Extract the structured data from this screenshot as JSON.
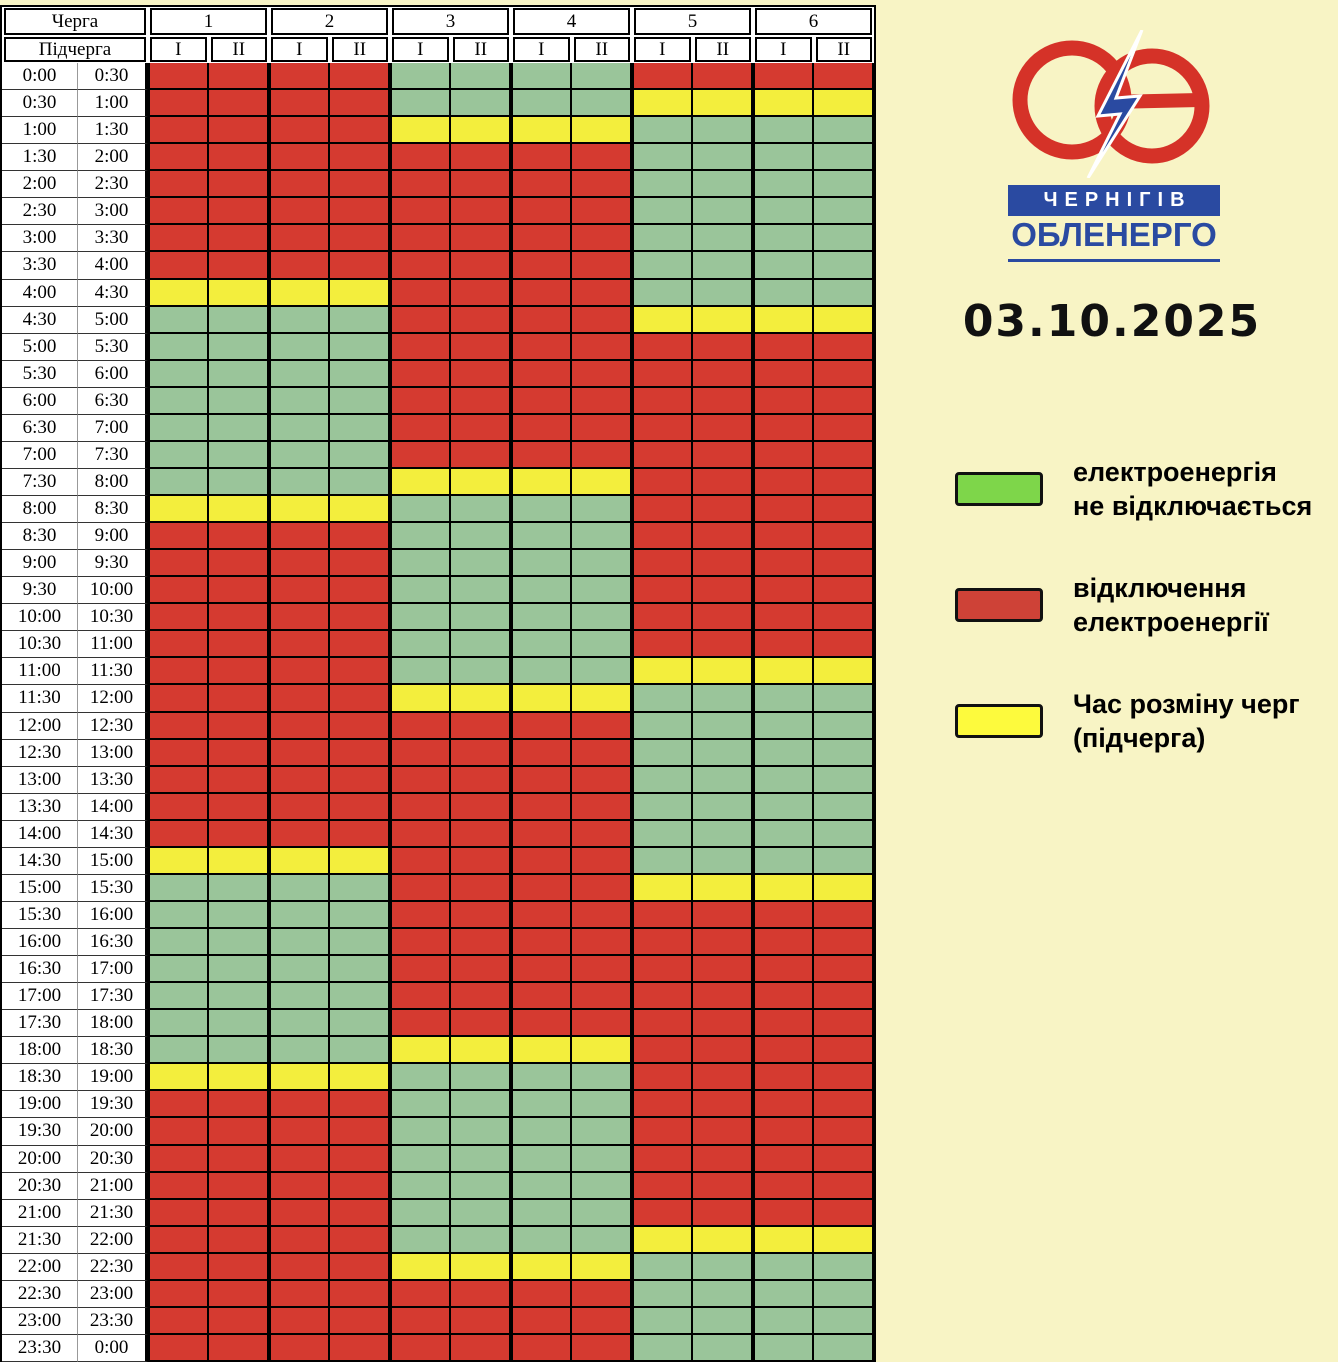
{
  "date": "03.10.2025",
  "colors": {
    "background": "#f8f4c5",
    "cell_red": "#d53a30",
    "cell_green": "#9ac59a",
    "cell_yellow": "#f3ee3d",
    "legend_green": "#7ed64a",
    "legend_red": "#ce4237",
    "legend_yellow": "#fdfa3d",
    "logo_red": "#d53228",
    "logo_blue": "#2a4aa1"
  },
  "logo": {
    "banner": "ЧЕРНІГІВ",
    "name": "ОБЛЕНЕРГО"
  },
  "table": {
    "cherga_label": "Черга",
    "pidcherga_label": "Підчерга",
    "queues": [
      "1",
      "2",
      "3",
      "4",
      "5",
      "6"
    ],
    "subqueues": [
      "I",
      "II"
    ]
  },
  "legend": {
    "items": [
      {
        "swatch": "green",
        "line1": "електроенергія",
        "line2": "не відключається"
      },
      {
        "swatch": "red",
        "line1": "відключення",
        "line2": "електроенергії"
      },
      {
        "swatch": "yellow",
        "line1": "Час розміну черг",
        "line2": "(підчерга)"
      }
    ]
  },
  "chart_data": {
    "type": "heatmap",
    "title": "03.10.2025",
    "columns": [
      "1-I",
      "1-II",
      "2-I",
      "2-II",
      "3-I",
      "3-II",
      "4-I",
      "4-II",
      "5-I",
      "5-II",
      "6-I",
      "6-II"
    ],
    "cell_legend": {
      "R": "відключення електроенергії",
      "G": "електроенергія не відключається",
      "Y": "Час розміну черг (підчерга)"
    },
    "rows": [
      {
        "start": "0:00",
        "end": "0:30",
        "cells": "RRRRGGGGRRRR"
      },
      {
        "start": "0:30",
        "end": "1:00",
        "cells": "RRRRGGGGYYYY"
      },
      {
        "start": "1:00",
        "end": "1:30",
        "cells": "RRRRYYYYGGGG"
      },
      {
        "start": "1:30",
        "end": "2:00",
        "cells": "RRRRRRRRGGGG"
      },
      {
        "start": "2:00",
        "end": "2:30",
        "cells": "RRRRRRRRGGGG"
      },
      {
        "start": "2:30",
        "end": "3:00",
        "cells": "RRRRRRRRGGGG"
      },
      {
        "start": "3:00",
        "end": "3:30",
        "cells": "RRRRRRRRGGGG"
      },
      {
        "start": "3:30",
        "end": "4:00",
        "cells": "RRRRRRRRGGGG"
      },
      {
        "start": "4:00",
        "end": "4:30",
        "cells": "YYYYRRRRGGGG"
      },
      {
        "start": "4:30",
        "end": "5:00",
        "cells": "GGGGRRRRYYYY"
      },
      {
        "start": "5:00",
        "end": "5:30",
        "cells": "GGGGRRRRRRRR"
      },
      {
        "start": "5:30",
        "end": "6:00",
        "cells": "GGGGRRRRRRRR"
      },
      {
        "start": "6:00",
        "end": "6:30",
        "cells": "GGGGRRRRRRRR"
      },
      {
        "start": "6:30",
        "end": "7:00",
        "cells": "GGGGRRRRRRRR"
      },
      {
        "start": "7:00",
        "end": "7:30",
        "cells": "GGGGRRRRRRRR"
      },
      {
        "start": "7:30",
        "end": "8:00",
        "cells": "GGGGYYYYRRRR"
      },
      {
        "start": "8:00",
        "end": "8:30",
        "cells": "YYYYGGGGRRRR"
      },
      {
        "start": "8:30",
        "end": "9:00",
        "cells": "RRRRGGGGRRRR"
      },
      {
        "start": "9:00",
        "end": "9:30",
        "cells": "RRRRGGGGRRRR"
      },
      {
        "start": "9:30",
        "end": "10:00",
        "cells": "RRRRGGGGRRRR"
      },
      {
        "start": "10:00",
        "end": "10:30",
        "cells": "RRRRGGGGRRRR"
      },
      {
        "start": "10:30",
        "end": "11:00",
        "cells": "RRRRGGGGRRRR"
      },
      {
        "start": "11:00",
        "end": "11:30",
        "cells": "RRRRGGGGYYYY"
      },
      {
        "start": "11:30",
        "end": "12:00",
        "cells": "RRRRYYYYGGGG"
      },
      {
        "start": "12:00",
        "end": "12:30",
        "cells": "RRRRRRRRGGGG"
      },
      {
        "start": "12:30",
        "end": "13:00",
        "cells": "RRRRRRRRGGGG"
      },
      {
        "start": "13:00",
        "end": "13:30",
        "cells": "RRRRRRRRGGGG"
      },
      {
        "start": "13:30",
        "end": "14:00",
        "cells": "RRRRRRRRGGGG"
      },
      {
        "start": "14:00",
        "end": "14:30",
        "cells": "RRRRRRRRGGGG"
      },
      {
        "start": "14:30",
        "end": "15:00",
        "cells": "YYYYRRRRGGGG"
      },
      {
        "start": "15:00",
        "end": "15:30",
        "cells": "GGGGRRRRYYYY"
      },
      {
        "start": "15:30",
        "end": "16:00",
        "cells": "GGGGRRRRRRRR"
      },
      {
        "start": "16:00",
        "end": "16:30",
        "cells": "GGGGRRRRRRRR"
      },
      {
        "start": "16:30",
        "end": "17:00",
        "cells": "GGGGRRRRRRRR"
      },
      {
        "start": "17:00",
        "end": "17:30",
        "cells": "GGGGRRRRRRRR"
      },
      {
        "start": "17:30",
        "end": "18:00",
        "cells": "GGGGRRRRRRRR"
      },
      {
        "start": "18:00",
        "end": "18:30",
        "cells": "GGGGYYYYRRRR"
      },
      {
        "start": "18:30",
        "end": "19:00",
        "cells": "YYYYGGGGRRRR"
      },
      {
        "start": "19:00",
        "end": "19:30",
        "cells": "RRRRGGGGRRRR"
      },
      {
        "start": "19:30",
        "end": "20:00",
        "cells": "RRRRGGGGRRRR"
      },
      {
        "start": "20:00",
        "end": "20:30",
        "cells": "RRRRGGGGRRRR"
      },
      {
        "start": "20:30",
        "end": "21:00",
        "cells": "RRRRGGGGRRRR"
      },
      {
        "start": "21:00",
        "end": "21:30",
        "cells": "RRRRGGGGRRRR"
      },
      {
        "start": "21:30",
        "end": "22:00",
        "cells": "RRRRGGGGYYYY"
      },
      {
        "start": "22:00",
        "end": "22:30",
        "cells": "RRRRYYYYGGGG"
      },
      {
        "start": "22:30",
        "end": "23:00",
        "cells": "RRRRRRRRGGGG"
      },
      {
        "start": "23:00",
        "end": "23:30",
        "cells": "RRRRRRRRGGGG"
      },
      {
        "start": "23:30",
        "end": "0:00",
        "cells": "RRRRRRRRGGGG"
      }
    ]
  }
}
